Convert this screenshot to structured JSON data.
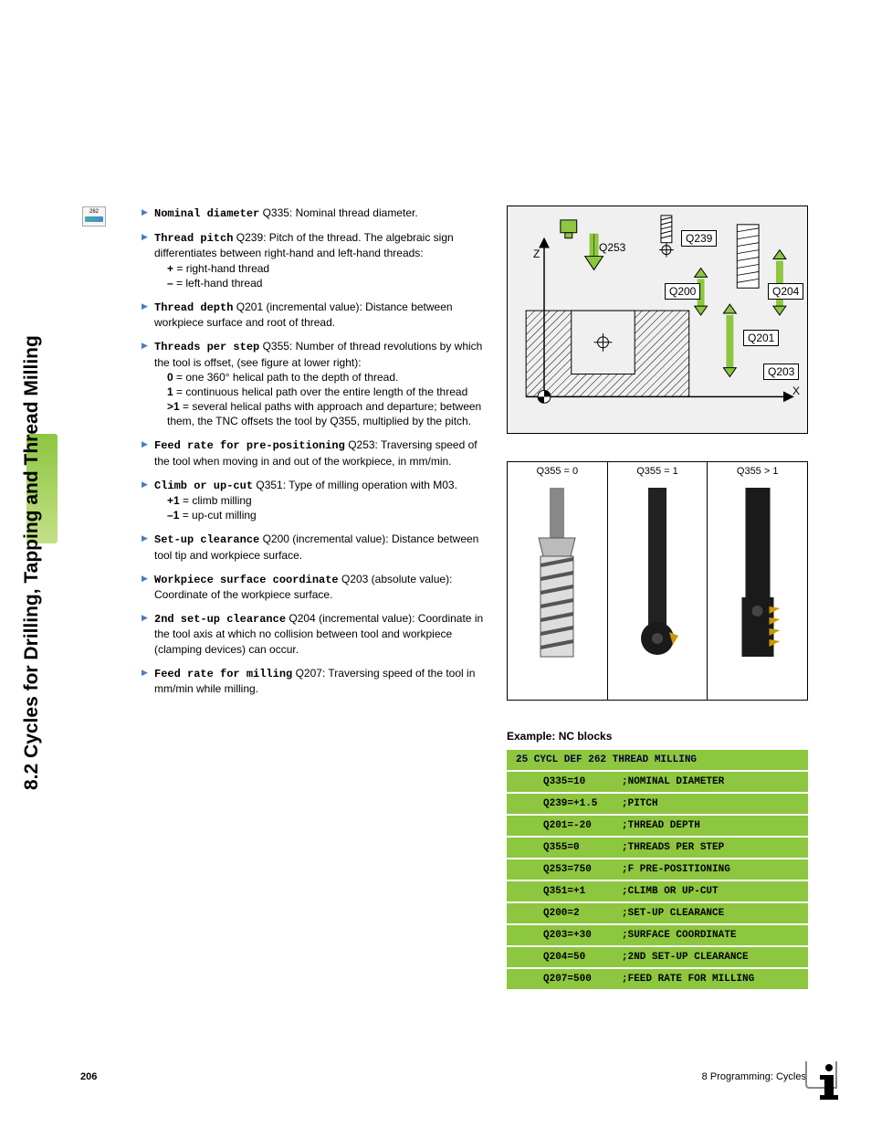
{
  "sidebar": {
    "title": "8.2 Cycles for Drilling, Tapping and Thread Milling"
  },
  "icon": {
    "code": "262"
  },
  "params": [
    {
      "title": "Nominal diameter",
      "code": "Q335",
      "desc": ": Nominal thread diameter.",
      "subs": []
    },
    {
      "title": "Thread pitch",
      "code": "Q239",
      "desc": ": Pitch of the thread. The algebraic sign differentiates between right-hand and left-hand threads:",
      "subs": [
        {
          "b": "+",
          "t": " = right-hand thread"
        },
        {
          "b": "–",
          "t": " = left-hand thread"
        }
      ]
    },
    {
      "title": "Thread depth",
      "code": "Q201",
      "desc": " (incremental value): Distance between workpiece surface and root of thread.",
      "subs": []
    },
    {
      "title": "Threads per step",
      "code": "Q355",
      "desc": ": Number of thread revolutions by which the tool is offset, (see figure at lower right):",
      "subs": [
        {
          "b": "0",
          "t": " = one 360° helical path to the depth of thread."
        },
        {
          "b": "1",
          "t": " = continuous helical path over the entire length of the thread"
        },
        {
          "b": ">1",
          "t": " = several helical paths with approach and departure; between them, the TNC offsets the tool by Q355, multiplied by the pitch."
        }
      ]
    },
    {
      "title": "Feed rate for pre-positioning",
      "code": "Q253",
      "desc": ": Traversing speed of the tool when moving in and out of the workpiece, in mm/min.",
      "subs": []
    },
    {
      "title": "Climb or up-cut",
      "code": "Q351",
      "desc": ": Type of milling operation with M03.",
      "subs": [
        {
          "b": "+1",
          "t": " = climb milling"
        },
        {
          "b": "–1",
          "t": " = up-cut milling"
        }
      ]
    },
    {
      "title": "Set-up clearance",
      "code": "Q200",
      "desc": " (incremental value): Distance between tool tip and workpiece surface.",
      "subs": []
    },
    {
      "title": "Workpiece surface coordinate",
      "code": "Q203",
      "desc": " (absolute value): Coordinate of the workpiece surface.",
      "subs": []
    },
    {
      "title": "2nd set-up clearance",
      "code": "Q204",
      "desc": " (incremental value): Coordinate in the tool axis at which no collision between tool and workpiece (clamping devices) can occur.",
      "subs": []
    },
    {
      "title": "Feed rate for milling",
      "code": "Q207",
      "desc": ": Traversing speed of the tool in mm/min while milling.",
      "subs": []
    }
  ],
  "diagram": {
    "bg": "#f0f0f0",
    "axis_z": "Z",
    "axis_x": "X",
    "labels": {
      "Q239": "Q239",
      "Q253": "Q253",
      "Q200": "Q200",
      "Q204": "Q204",
      "Q201": "Q201",
      "Q203": "Q203"
    }
  },
  "tools": {
    "headers": [
      "Q355 = 0",
      "Q355 = 1",
      "Q355 > 1"
    ]
  },
  "example": {
    "title": "Example: NC blocks",
    "header": "25 CYCL DEF 262 THREAD MILLING",
    "rows": [
      {
        "q": "Q335=10",
        "c": ";NOMINAL DIAMETER"
      },
      {
        "q": "Q239=+1.5",
        "c": ";PITCH"
      },
      {
        "q": "Q201=-20",
        "c": ";THREAD DEPTH"
      },
      {
        "q": "Q355=0",
        "c": ";THREADS PER STEP"
      },
      {
        "q": "Q253=750",
        "c": ";F PRE-POSITIONING"
      },
      {
        "q": "Q351=+1",
        "c": ";CLIMB OR UP-CUT"
      },
      {
        "q": "Q200=2",
        "c": ";SET-UP CLEARANCE"
      },
      {
        "q": "Q203=+30",
        "c": ";SURFACE COORDINATE"
      },
      {
        "q": "Q204=50",
        "c": ";2ND SET-UP CLEARANCE"
      },
      {
        "q": "Q207=500",
        "c": ";FEED RATE FOR MILLING"
      }
    ],
    "bg": "#8dc63f"
  },
  "footer": {
    "page": "206",
    "chapter": "8 Programming: Cycles"
  }
}
